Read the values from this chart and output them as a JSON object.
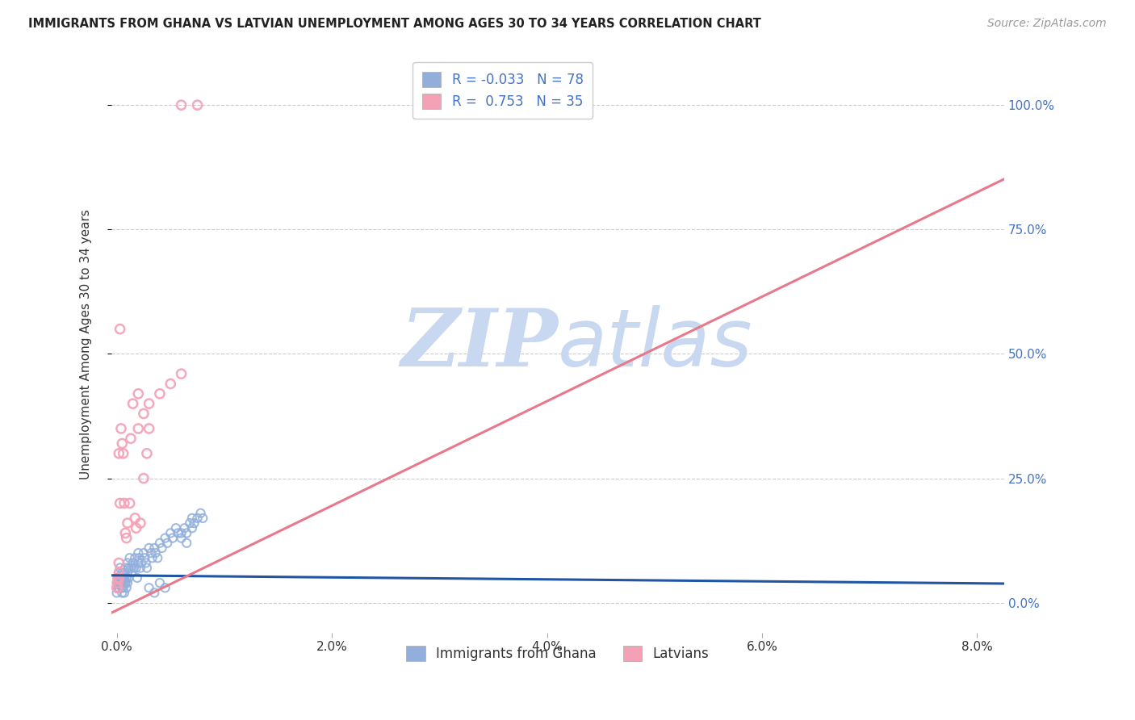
{
  "title": "IMMIGRANTS FROM GHANA VS LATVIAN UNEMPLOYMENT AMONG AGES 30 TO 34 YEARS CORRELATION CHART",
  "source": "Source: ZipAtlas.com",
  "ylabel": "Unemployment Among Ages 30 to 34 years",
  "legend_label1": "Immigrants from Ghana",
  "legend_label2": "Latvians",
  "R1": "-0.033",
  "N1": "78",
  "R2": "0.753",
  "N2": "35",
  "scatter_blue_color": "#92AFDC",
  "scatter_pink_color": "#F4A0B5",
  "line_blue_color": "#2155A3",
  "line_pink_color": "#E8788A",
  "watermark_zip_color": "#C8D8F0",
  "watermark_atlas_color": "#C8D8F0",
  "background_color": "#FFFFFF",
  "xlim": [
    -0.0005,
    0.0825
  ],
  "ylim": [
    -0.06,
    1.1
  ],
  "yticks": [
    0.0,
    0.25,
    0.5,
    0.75,
    1.0
  ],
  "xticks": [
    0.0,
    0.02,
    0.04,
    0.06,
    0.08
  ],
  "blue_trend_intercept": 0.055,
  "blue_trend_slope": -0.2,
  "pink_trend_intercept": -0.015,
  "pink_trend_slope": 10.5,
  "ghana_x": [
    0.0,
    0.0,
    0.0001,
    0.0001,
    0.0002,
    0.0002,
    0.0002,
    0.0003,
    0.0003,
    0.0003,
    0.0004,
    0.0004,
    0.0005,
    0.0005,
    0.0006,
    0.0006,
    0.0007,
    0.0007,
    0.0008,
    0.0008,
    0.0009,
    0.0009,
    0.001,
    0.001,
    0.001,
    0.0011,
    0.0011,
    0.0012,
    0.0013,
    0.0014,
    0.0015,
    0.0016,
    0.0017,
    0.0018,
    0.0019,
    0.002,
    0.002,
    0.0021,
    0.0022,
    0.0023,
    0.0025,
    0.0026,
    0.0027,
    0.0028,
    0.003,
    0.0032,
    0.0033,
    0.0035,
    0.0036,
    0.0038,
    0.004,
    0.0042,
    0.0045,
    0.0047,
    0.005,
    0.0052,
    0.0055,
    0.0057,
    0.006,
    0.0063,
    0.0065,
    0.0068,
    0.007,
    0.0072,
    0.0075,
    0.0078,
    0.008,
    0.006,
    0.0065,
    0.007,
    0.003,
    0.0035,
    0.004,
    0.0045,
    0.0005,
    0.0006,
    0.0007,
    0.0008
  ],
  "ghana_y": [
    0.04,
    0.02,
    0.03,
    0.05,
    0.04,
    0.06,
    0.03,
    0.05,
    0.04,
    0.07,
    0.05,
    0.04,
    0.06,
    0.03,
    0.05,
    0.04,
    0.06,
    0.05,
    0.04,
    0.07,
    0.05,
    0.03,
    0.08,
    0.06,
    0.04,
    0.07,
    0.05,
    0.09,
    0.07,
    0.06,
    0.08,
    0.07,
    0.09,
    0.07,
    0.05,
    0.1,
    0.08,
    0.09,
    0.07,
    0.08,
    0.1,
    0.09,
    0.08,
    0.07,
    0.11,
    0.1,
    0.09,
    0.11,
    0.1,
    0.09,
    0.12,
    0.11,
    0.13,
    0.12,
    0.14,
    0.13,
    0.15,
    0.14,
    0.14,
    0.15,
    0.14,
    0.16,
    0.17,
    0.16,
    0.17,
    0.18,
    0.17,
    0.13,
    0.12,
    0.15,
    0.03,
    0.02,
    0.04,
    0.03,
    0.02,
    0.03,
    0.02,
    0.04
  ],
  "latvian_x": [
    0.0,
    0.0001,
    0.0001,
    0.0001,
    0.0002,
    0.0002,
    0.0002,
    0.0003,
    0.0004,
    0.0005,
    0.0006,
    0.0007,
    0.0008,
    0.0009,
    0.001,
    0.0012,
    0.0013,
    0.0015,
    0.0017,
    0.0018,
    0.002,
    0.0022,
    0.0025,
    0.0028,
    0.003,
    0.002,
    0.0025,
    0.003,
    0.0003,
    0.0002,
    0.004,
    0.005,
    0.006,
    0.0075,
    0.006
  ],
  "latvian_y": [
    0.03,
    0.05,
    0.03,
    0.04,
    0.06,
    0.08,
    0.05,
    0.2,
    0.35,
    0.32,
    0.3,
    0.2,
    0.14,
    0.13,
    0.16,
    0.2,
    0.33,
    0.4,
    0.17,
    0.15,
    0.42,
    0.16,
    0.25,
    0.3,
    0.35,
    0.35,
    0.38,
    0.4,
    0.55,
    0.3,
    0.42,
    0.44,
    0.46,
    1.0,
    1.0
  ]
}
